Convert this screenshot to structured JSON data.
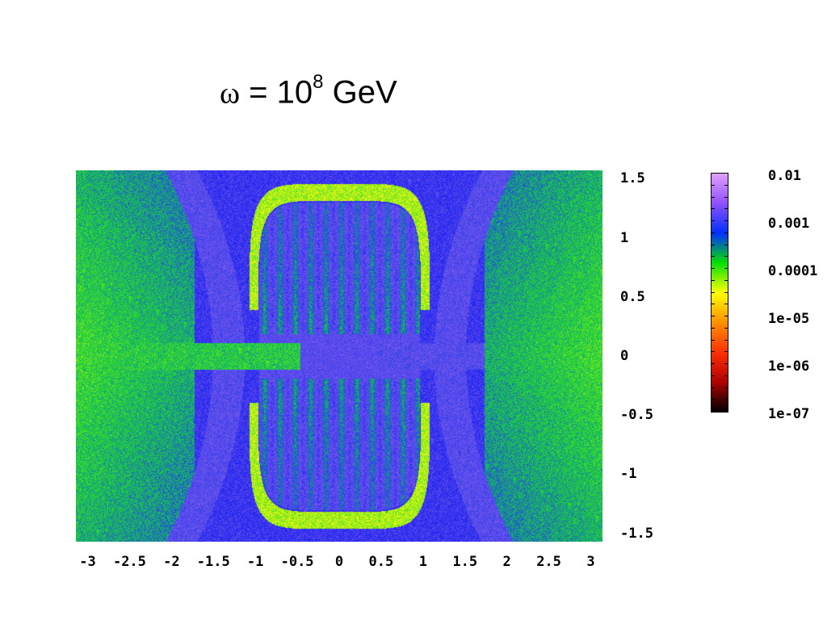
{
  "title": {
    "symbol": "ω",
    "equals": "=",
    "base": "10",
    "exponent": "8",
    "unit": "GeV"
  },
  "chart_data": {
    "type": "heatmap",
    "title": "ω = 10^8 GeV",
    "xlabel": "",
    "ylabel": "",
    "xlim": [
      -3.14,
      3.14
    ],
    "ylim": [
      -1.57,
      1.57
    ],
    "x_ticks": [
      "-3",
      "-2.5",
      "-2",
      "-1.5",
      "-1",
      "-0.5",
      "0",
      "0.5",
      "1",
      "1.5",
      "2",
      "2.5",
      "3"
    ],
    "x_tick_values": [
      -3,
      -2.5,
      -2,
      -1.5,
      -1,
      -0.5,
      0,
      0.5,
      1,
      1.5,
      2,
      2.5,
      3
    ],
    "y_ticks": [
      "1.5",
      "1",
      "0.5",
      "0",
      "-0.5",
      "-1",
      "-1.5"
    ],
    "y_tick_values": [
      1.5,
      1,
      0.5,
      0,
      -0.5,
      -1,
      -1.5
    ],
    "y_axis_side": "right",
    "colorbar": {
      "scale": "log",
      "range": [
        1e-07,
        0.01
      ],
      "ticks": [
        "0.01",
        "0.001",
        "0.0001",
        "1e-05",
        "1e-06",
        "1e-07"
      ],
      "tick_values": [
        0.01,
        0.001,
        0.0001,
        1e-05,
        1e-06,
        1e-07
      ],
      "colors": [
        "#000000",
        "#b00000",
        "#ff3000",
        "#ff9000",
        "#ffff00",
        "#00e000",
        "#0030ff",
        "#9050ff",
        "#e0a0ff"
      ]
    },
    "grid": false
  }
}
